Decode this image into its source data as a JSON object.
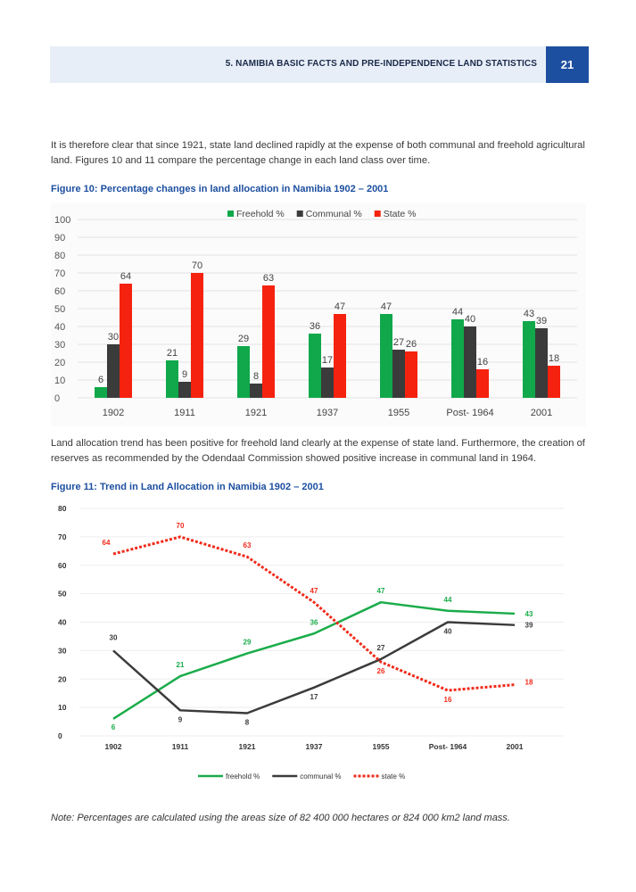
{
  "header": {
    "title": "5. NAMIBIA BASIC FACTS AND PRE-INDEPENDENCE LAND STATISTICS",
    "page_number": "21"
  },
  "paragraph1": "It is therefore clear that since 1921, state land declined rapidly at the expense of both communal and freehold agricultural land. Figures 10 and 11 compare the percentage change in each land class over time.",
  "figure10_title": "Figure 10: Percentage changes in land allocation in Namibia 1902 – 2001",
  "paragraph2": "Land allocation trend has been positive for freehold land clearly at the expense of state land. Furthermore, the creation of reserves as recommended by the Odendaal Commission showed positive increase in communal land in 1964.",
  "figure11_title": "Figure 11: Trend in Land Allocation in Namibia 1902 – 2001",
  "note": "Note:  Percentages are calculated using the areas size of 82 400 000 hectares or 824 000 km2 land mass.",
  "chart_data": [
    {
      "type": "bar",
      "categories": [
        "1902",
        "1911",
        "1921",
        "1937",
        "1955",
        "Post- 1964",
        "2001"
      ],
      "series": [
        {
          "name": "Freehold %",
          "values": [
            6,
            21,
            29,
            36,
            47,
            44,
            43
          ],
          "color": "#10a84a"
        },
        {
          "name": "Communal %",
          "values": [
            30,
            9,
            8,
            17,
            27,
            40,
            39
          ],
          "color": "#3b3b3b"
        },
        {
          "name": "State %",
          "values": [
            64,
            70,
            63,
            47,
            26,
            16,
            18
          ],
          "color": "#f5220f"
        }
      ],
      "yticks": [
        "0",
        "10",
        "20",
        "30",
        "40",
        "50",
        "60",
        "70",
        "80",
        "90",
        "100"
      ],
      "ylim": [
        0,
        100
      ],
      "legend": "top",
      "grid": true
    },
    {
      "type": "line",
      "categories": [
        "1902",
        "1911",
        "1921",
        "1937",
        "1955",
        "Post- 1964",
        "2001"
      ],
      "series": [
        {
          "name": "freehold %",
          "values": [
            6,
            21,
            29,
            36,
            47,
            44,
            43
          ],
          "color": "#1aac4a",
          "style": "solid"
        },
        {
          "name": "communal %",
          "values": [
            30,
            9,
            8,
            17,
            27,
            40,
            39
          ],
          "color": "#3b3b3b",
          "style": "solid"
        },
        {
          "name": "state %",
          "values": [
            64,
            70,
            63,
            47,
            26,
            16,
            18
          ],
          "color": "#f02a1a",
          "style": "dotted"
        }
      ],
      "yticks": [
        "0",
        "10",
        "20",
        "30",
        "40",
        "50",
        "60",
        "70",
        "80"
      ],
      "ylim": [
        0,
        80
      ],
      "legend": "bottom",
      "grid": true
    }
  ]
}
